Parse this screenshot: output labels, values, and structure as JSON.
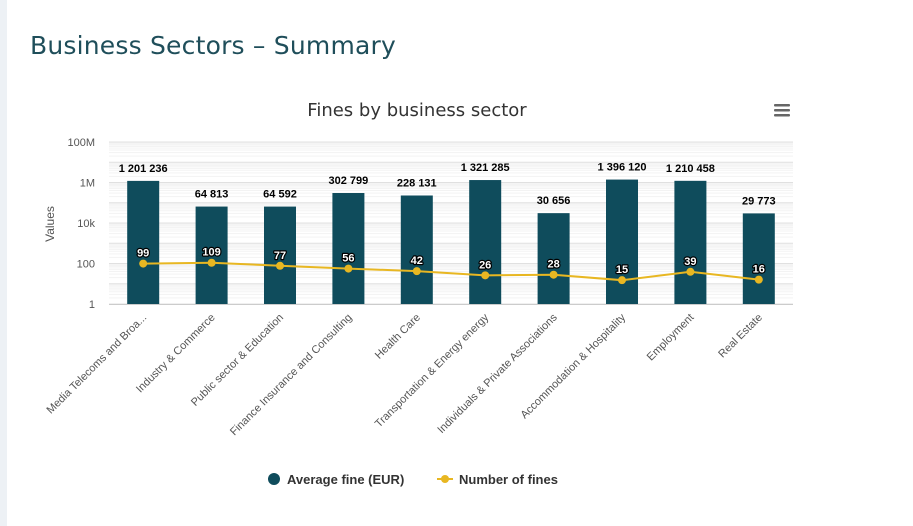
{
  "page": {
    "title": "Business Sectors – Summary"
  },
  "colors": {
    "bar": "#0f4c5c",
    "line": "#e8b722",
    "title": "#1f4e5a",
    "grid": "#e6e6e6",
    "text": "#333333"
  },
  "chart_data": {
    "type": "bar",
    "title": "Fines by business sector",
    "ylabel": "Values",
    "xlabel": "",
    "yscale": "log",
    "ylim": [
      1,
      100000000
    ],
    "yticks": [
      {
        "value": 1,
        "label": "1"
      },
      {
        "value": 100,
        "label": "100"
      },
      {
        "value": 10000,
        "label": "10k"
      },
      {
        "value": 1000000,
        "label": "1M"
      },
      {
        "value": 100000000,
        "label": "100M"
      }
    ],
    "grid": true,
    "legend_position": "bottom-center",
    "categories": [
      "Media Telecoms and Broa...",
      "Industry & Commerce",
      "Public sector & Education",
      "Finance Insurance and Consulting",
      "Health Care",
      "Transportation & Energy energy",
      "Individuals & Private Associations",
      "Accommodation & Hospitality",
      "Employment",
      "Real Estate"
    ],
    "series": [
      {
        "name": "Average fine (EUR)",
        "type": "bar",
        "values": [
          1201236,
          64813,
          64592,
          302799,
          228131,
          1321285,
          30656,
          1396120,
          1210458,
          29773
        ],
        "labels": [
          "1 201 236",
          "64 813",
          "64 592",
          "302 799",
          "228 131",
          "1 321 285",
          "30 656",
          "1 396 120",
          "1 210 458",
          "29 773"
        ]
      },
      {
        "name": "Number of fines",
        "type": "line",
        "values": [
          99,
          109,
          77,
          56,
          42,
          26,
          28,
          15,
          39,
          16
        ],
        "labels": [
          "99",
          "109",
          "77",
          "56",
          "42",
          "26",
          "28",
          "15",
          "39",
          "16"
        ]
      }
    ]
  }
}
